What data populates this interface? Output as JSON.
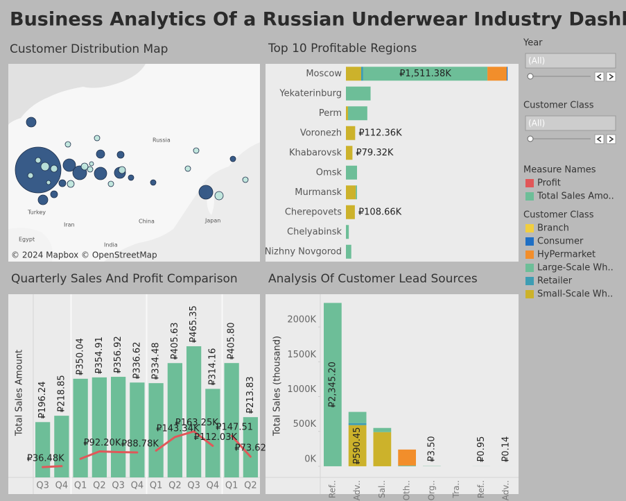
{
  "title": "Business Analytics Of a Russian Underwear Industry Dashboard",
  "map": {
    "title": "Customer Distribution Map",
    "attribution": "© 2024 Mapbox © OpenStreetMap",
    "place_labels": [
      "Russia",
      "Turkey",
      "Iran",
      "Egypt",
      "China",
      "India",
      "Japan"
    ]
  },
  "chart_data": [
    {
      "type": "bar",
      "orientation": "horizontal",
      "stacked": true,
      "title": "Top 10 Profitable Regions",
      "categories": [
        "Moscow",
        "Yekaterinburg",
        "Perm",
        "Voronezh",
        "Khabarovsk",
        "Omsk",
        "Murmansk",
        "Cherepovets",
        "Chelyabinsk",
        "Nizhny Novgorod"
      ],
      "xlim": [
        0,
        2100
      ],
      "series": [
        {
          "name": "Small-Scale Wh..",
          "color": "#ccb22b",
          "values": [
            185,
            null,
            25,
            112.36,
            79.32,
            null,
            120,
            108.66,
            null,
            null
          ],
          "value_labels": [
            null,
            null,
            null,
            "₽112.36K",
            "₽79.32K",
            null,
            null,
            "₽108.66K",
            null,
            null
          ]
        },
        {
          "name": "Retailer",
          "color": "#3e9db3",
          "values": [
            25,
            null,
            null,
            null,
            null,
            null,
            null,
            null,
            null,
            null
          ]
        },
        {
          "name": "Large-Scale Wh..",
          "color": "#6dbe98",
          "values": [
            1511.38,
            300,
            235,
            null,
            null,
            135,
            15,
            null,
            35,
            65
          ],
          "value_labels": [
            "₽1,511.38K",
            null,
            null,
            null,
            null,
            null,
            null,
            null,
            null,
            null
          ]
        },
        {
          "name": "HyPermarket",
          "color": "#f28e2b",
          "values": [
            235,
            null,
            null,
            null,
            null,
            null,
            null,
            null,
            null,
            null
          ]
        },
        {
          "name": "Consumer",
          "color": "#1f6fc4",
          "values": [
            10,
            null,
            null,
            null,
            null,
            null,
            null,
            null,
            null,
            null
          ]
        }
      ]
    },
    {
      "type": "combo",
      "title": "Quarterly Sales And Profit Comparison",
      "y_label": "Total Sales Amount",
      "categories": [
        "Q3",
        "Q4",
        "Q1",
        "Q2",
        "Q3",
        "Q4",
        "Q1",
        "Q2",
        "Q3",
        "Q4",
        "Q1",
        "Q2"
      ],
      "ylim": [
        0,
        650
      ],
      "series": [
        {
          "name": "Total Sales Amo..",
          "kind": "bar",
          "color": "#6dbe98",
          "values": [
            196.24,
            218.85,
            350.04,
            354.91,
            356.92,
            336.62,
            334.48,
            405.63,
            465.35,
            314.16,
            405.8,
            213.83
          ],
          "value_labels": [
            "₽196.24",
            "₽218.85",
            "₽350.04",
            "₽354.91",
            "₽356.92",
            "₽336.62",
            "₽334.48",
            "₽405.63",
            "₽465.35",
            "₽314.16",
            "₽405.80",
            "₽213.83"
          ]
        },
        {
          "name": "Profit",
          "kind": "line",
          "color": "#e15759",
          "values": [
            36.48,
            40,
            66,
            92.2,
            90,
            88.78,
            95,
            143.34,
            163.25,
            112.03,
            147.51,
            73.62
          ],
          "value_labels": [
            "₽36.48K",
            null,
            null,
            "₽92.20K",
            null,
            "₽88.78K",
            null,
            "₽143.34K",
            "₽163.25K",
            "₽112.03K",
            "₽147.51",
            "₽73.62K"
          ]
        }
      ]
    },
    {
      "type": "bar",
      "orientation": "vertical",
      "stacked": true,
      "title": "Analysis Of Customer Lead Sources",
      "y_label": "Total Sales (thousand)",
      "categories": [
        "Ref..",
        "Adv..",
        "Sal..",
        "Oth..",
        "Org..",
        "Tra..",
        "Ref..",
        "Adv.."
      ],
      "ylim": [
        -160,
        2470
      ],
      "yticks": [
        {
          "value": 0,
          "label": "0K"
        },
        {
          "value": 500,
          "label": "500K"
        },
        {
          "value": 1000,
          "label": "1000K"
        },
        {
          "value": 1500,
          "label": "1500K"
        },
        {
          "value": 2000,
          "label": "2000K"
        }
      ],
      "series": [
        {
          "name": "Small-Scale Wh..",
          "color": "#ccb22b",
          "values": [
            null,
            590.45,
            490,
            null,
            null,
            null,
            null,
            null
          ],
          "value_labels": [
            null,
            "₽590.45",
            null,
            null,
            null,
            null,
            null,
            null
          ]
        },
        {
          "name": "Retailer",
          "color": "#3e9db3",
          "values": [
            null,
            30,
            null,
            null,
            null,
            null,
            null,
            null
          ]
        },
        {
          "name": "Large-Scale Wh..",
          "color": "#6dbe98",
          "values": [
            2345.2,
            160,
            60,
            10,
            3.5,
            null,
            0.95,
            0.14
          ],
          "value_labels": [
            "₽2,345.20",
            null,
            null,
            null,
            "₽3.50",
            null,
            "₽0.95",
            "₽0.14"
          ]
        },
        {
          "name": "HyPermarket",
          "color": "#f28e2b",
          "values": [
            null,
            null,
            null,
            230,
            null,
            null,
            null,
            null
          ]
        }
      ]
    }
  ],
  "filters": [
    {
      "title": "Year",
      "value": "(All)"
    },
    {
      "title": "Customer Class",
      "value": "(All)"
    }
  ],
  "legends": [
    {
      "title": "Measure Names",
      "items": [
        {
          "name": "Profit",
          "color": "#e15759"
        },
        {
          "name": "Total Sales Amo..",
          "color": "#6dbe98"
        }
      ]
    },
    {
      "title": "Customer Class",
      "items": [
        {
          "name": "Branch",
          "color": "#f1ce3f"
        },
        {
          "name": "Consumer",
          "color": "#1f6fc4"
        },
        {
          "name": "HyPermarket",
          "color": "#f28e2b"
        },
        {
          "name": "Large-Scale Wh..",
          "color": "#6dbe98"
        },
        {
          "name": "Retailer",
          "color": "#3e9db3"
        },
        {
          "name": "Small-Scale Wh..",
          "color": "#ccb22b"
        }
      ]
    }
  ]
}
